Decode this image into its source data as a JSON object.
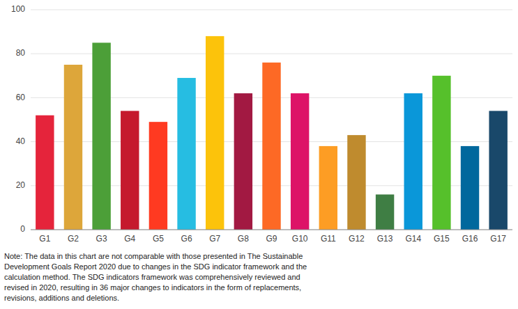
{
  "chart_data": {
    "type": "bar",
    "categories": [
      "G1",
      "G2",
      "G3",
      "G4",
      "G5",
      "G6",
      "G7",
      "G8",
      "G9",
      "G10",
      "G11",
      "G12",
      "G13",
      "G14",
      "G15",
      "G16",
      "G17"
    ],
    "values": [
      52,
      75,
      85,
      54,
      49,
      69,
      88,
      62,
      76,
      62,
      38,
      43,
      16,
      62,
      70,
      38,
      54
    ],
    "colors": [
      "#E5243B",
      "#DDA63A",
      "#4C9F38",
      "#C5192D",
      "#FF3A21",
      "#26BDE2",
      "#FCC30B",
      "#A21942",
      "#FD6925",
      "#DD1367",
      "#FD9D24",
      "#BF8B2E",
      "#3F7E44",
      "#0A97D9",
      "#56C02B",
      "#00689D",
      "#19486A"
    ],
    "ylim": [
      0,
      100
    ],
    "yticks": [
      0,
      20,
      40,
      60,
      80,
      100
    ],
    "grid": true,
    "annotations": [
      "Note: The data in this chart are not comparable with those presented in The Sustainable",
      "Development Goals Report 2020 due to changes in the SDG indicator framework and the",
      "calculation method. The SDG indicators framework was comprehensively reviewed and",
      "revised in 2020, resulting in 36 major changes to indicators in the form of replacements,",
      "revisions, additions and deletions."
    ]
  }
}
